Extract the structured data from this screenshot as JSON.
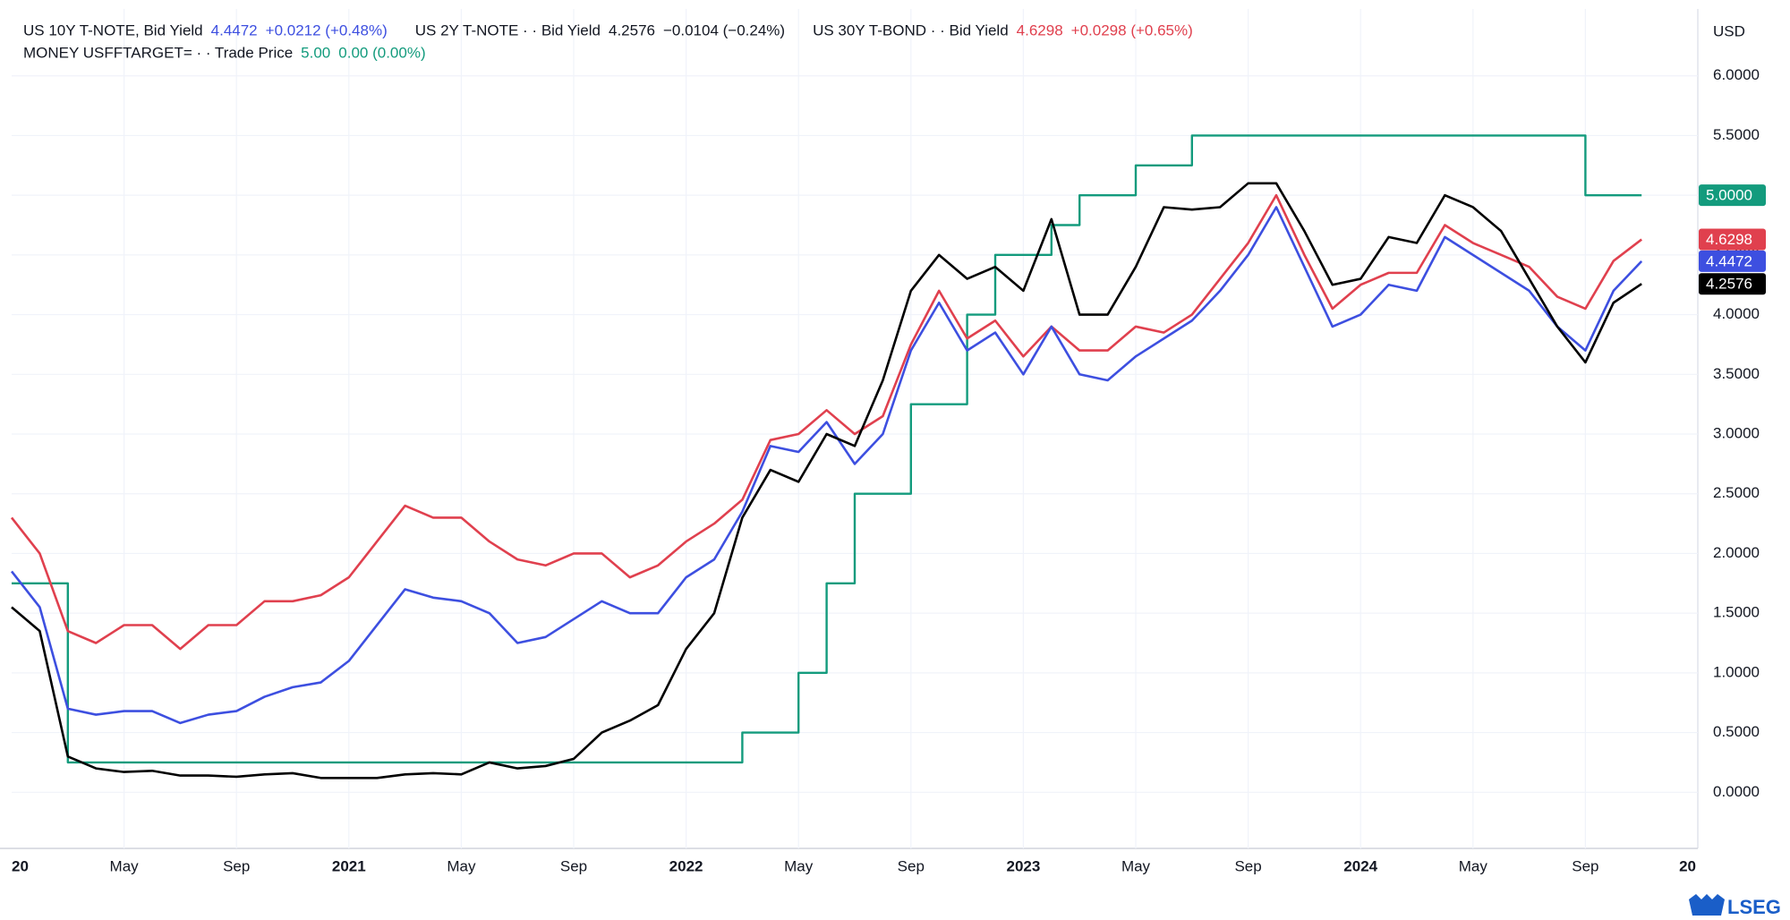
{
  "chart_data": {
    "type": "line",
    "currency": "USD",
    "brand": "LSEG",
    "xlim": [
      "2020-01",
      "2025-01"
    ],
    "ylim": [
      -0.47,
      6.56
    ],
    "grid": true,
    "xticks": [
      {
        "value": "2020-01",
        "label": "20"
      },
      {
        "value": "2020-05",
        "label": "May"
      },
      {
        "value": "2020-09",
        "label": "Sep"
      },
      {
        "value": "2021-01",
        "label": "2021"
      },
      {
        "value": "2021-05",
        "label": "May"
      },
      {
        "value": "2021-09",
        "label": "Sep"
      },
      {
        "value": "2022-01",
        "label": "2022"
      },
      {
        "value": "2022-05",
        "label": "May"
      },
      {
        "value": "2022-09",
        "label": "Sep"
      },
      {
        "value": "2023-01",
        "label": "2023"
      },
      {
        "value": "2023-05",
        "label": "May"
      },
      {
        "value": "2023-09",
        "label": "Sep"
      },
      {
        "value": "2024-01",
        "label": "2024"
      },
      {
        "value": "2024-05",
        "label": "May"
      },
      {
        "value": "2024-09",
        "label": "Sep"
      },
      {
        "value": "2025-01",
        "label": "20"
      }
    ],
    "yticks": [
      {
        "value": 0,
        "label": "0.0000"
      },
      {
        "value": 0.5,
        "label": "0.5000"
      },
      {
        "value": 1,
        "label": "1.0000"
      },
      {
        "value": 1.5,
        "label": "1.5000"
      },
      {
        "value": 2,
        "label": "2.0000"
      },
      {
        "value": 2.5,
        "label": "2.5000"
      },
      {
        "value": 3,
        "label": "3.0000"
      },
      {
        "value": 3.5,
        "label": "3.5000"
      },
      {
        "value": 4,
        "label": "4.0000"
      },
      {
        "value": 4.5,
        "label": "4.5000"
      },
      {
        "value": 5,
        "label": "5.0000"
      },
      {
        "value": 5.5,
        "label": "5.5000"
      },
      {
        "value": 6,
        "label": "6.0000"
      }
    ],
    "x": [
      "2020-01",
      "2020-02",
      "2020-03",
      "2020-04",
      "2020-05",
      "2020-06",
      "2020-07",
      "2020-08",
      "2020-09",
      "2020-10",
      "2020-11",
      "2020-12",
      "2021-01",
      "2021-02",
      "2021-03",
      "2021-04",
      "2021-05",
      "2021-06",
      "2021-07",
      "2021-08",
      "2021-09",
      "2021-10",
      "2021-11",
      "2021-12",
      "2022-01",
      "2022-02",
      "2022-03",
      "2022-04",
      "2022-05",
      "2022-06",
      "2022-07",
      "2022-08",
      "2022-09",
      "2022-10",
      "2022-11",
      "2022-12",
      "2023-01",
      "2023-02",
      "2023-03",
      "2023-04",
      "2023-05",
      "2023-06",
      "2023-07",
      "2023-08",
      "2023-09",
      "2023-10",
      "2023-11",
      "2023-12",
      "2024-01",
      "2024-02",
      "2024-03",
      "2024-04",
      "2024-05",
      "2024-06",
      "2024-07",
      "2024-08",
      "2024-09",
      "2024-10",
      "2024-11"
    ],
    "series": [
      {
        "name": "US 10Y T-NOTE, Bid Yield",
        "last": "4.4472",
        "change": "+0.0212 (+0.48%)",
        "badge": "4.4472",
        "color": "#3d4fe0",
        "text_color": "#3d4fe0",
        "row": 0,
        "step": false,
        "values": [
          1.85,
          1.55,
          0.7,
          0.65,
          0.68,
          0.68,
          0.58,
          0.65,
          0.68,
          0.8,
          0.88,
          0.92,
          1.1,
          1.4,
          1.7,
          1.63,
          1.6,
          1.5,
          1.25,
          1.3,
          1.45,
          1.6,
          1.5,
          1.5,
          1.8,
          1.95,
          2.35,
          2.9,
          2.85,
          3.1,
          2.75,
          3.0,
          3.7,
          4.1,
          3.7,
          3.85,
          3.5,
          3.9,
          3.5,
          3.45,
          3.65,
          3.8,
          3.95,
          4.2,
          4.5,
          4.9,
          4.4,
          3.9,
          4.0,
          4.25,
          4.2,
          4.65,
          4.5,
          4.35,
          4.2,
          3.9,
          3.7,
          4.2,
          4.4472
        ]
      },
      {
        "name": "US 2Y T-NOTE · · Bid Yield",
        "last": "4.2576",
        "change": "−0.0104 (−0.24%)",
        "badge": "4.2576",
        "color": "#000000",
        "text_color": "#131722",
        "row": 0,
        "step": false,
        "values": [
          1.55,
          1.35,
          0.3,
          0.2,
          0.17,
          0.18,
          0.14,
          0.14,
          0.13,
          0.15,
          0.16,
          0.12,
          0.12,
          0.12,
          0.15,
          0.16,
          0.15,
          0.25,
          0.2,
          0.22,
          0.28,
          0.5,
          0.6,
          0.73,
          1.2,
          1.5,
          2.3,
          2.7,
          2.6,
          3.0,
          2.9,
          3.45,
          4.2,
          4.5,
          4.3,
          4.4,
          4.2,
          4.8,
          4.0,
          4.0,
          4.4,
          4.9,
          4.88,
          4.9,
          5.1,
          5.1,
          4.7,
          4.25,
          4.3,
          4.65,
          4.6,
          5.0,
          4.9,
          4.7,
          4.3,
          3.9,
          3.6,
          4.1,
          4.2576
        ]
      },
      {
        "name": "US 30Y T-BOND · · Bid Yield",
        "last": "4.6298",
        "change": "+0.0298 (+0.65%)",
        "badge": "4.6298",
        "color": "#e0404e",
        "text_color": "#e0404e",
        "row": 0,
        "step": false,
        "values": [
          2.3,
          2.0,
          1.35,
          1.25,
          1.4,
          1.4,
          1.2,
          1.4,
          1.4,
          1.6,
          1.6,
          1.65,
          1.8,
          2.1,
          2.4,
          2.3,
          2.3,
          2.1,
          1.95,
          1.9,
          2.0,
          2.0,
          1.8,
          1.9,
          2.1,
          2.25,
          2.45,
          2.95,
          3.0,
          3.2,
          3.0,
          3.15,
          3.75,
          4.2,
          3.8,
          3.95,
          3.65,
          3.9,
          3.7,
          3.7,
          3.9,
          3.85,
          4.0,
          4.3,
          4.6,
          5.0,
          4.5,
          4.05,
          4.25,
          4.35,
          4.35,
          4.75,
          4.6,
          4.5,
          4.4,
          4.15,
          4.05,
          4.45,
          4.6298
        ]
      },
      {
        "name": "MONEY USFFTARGET= · · Trade Price",
        "last": "5.00",
        "change": "0.00 (0.00%)",
        "badge": "5.0000",
        "color": "#139b7d",
        "text_color": "#139b7d",
        "row": 1,
        "step": true,
        "values": [
          1.75,
          1.75,
          0.25,
          0.25,
          0.25,
          0.25,
          0.25,
          0.25,
          0.25,
          0.25,
          0.25,
          0.25,
          0.25,
          0.25,
          0.25,
          0.25,
          0.25,
          0.25,
          0.25,
          0.25,
          0.25,
          0.25,
          0.25,
          0.25,
          0.25,
          0.25,
          0.5,
          0.5,
          1.0,
          1.75,
          2.5,
          2.5,
          3.25,
          3.25,
          4.0,
          4.5,
          4.5,
          4.75,
          5.0,
          5.0,
          5.25,
          5.25,
          5.5,
          5.5,
          5.5,
          5.5,
          5.5,
          5.5,
          5.5,
          5.5,
          5.5,
          5.5,
          5.5,
          5.5,
          5.5,
          5.5,
          5.0,
          5.0,
          5.0
        ]
      }
    ]
  }
}
